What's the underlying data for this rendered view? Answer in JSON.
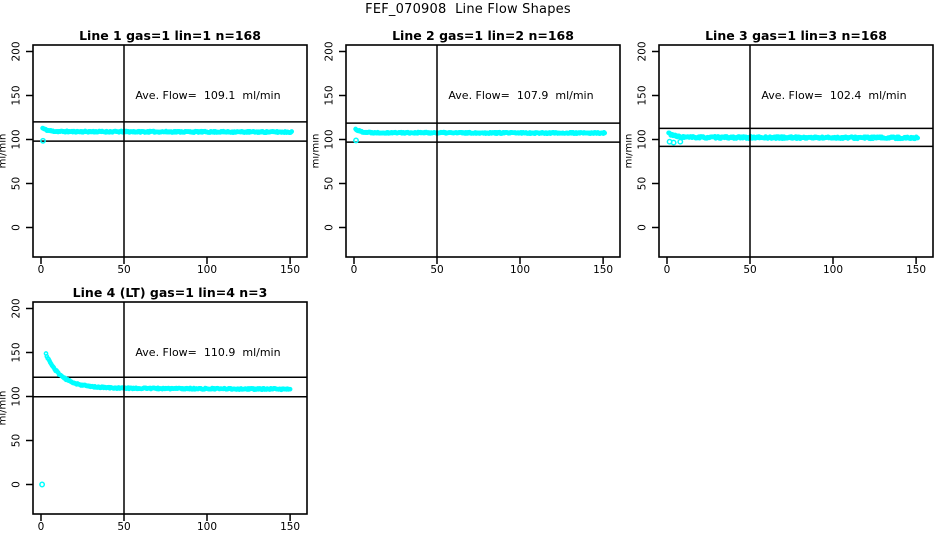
{
  "main": {
    "title": "FEF_070908  Line Flow Shapes"
  },
  "colors": {
    "points": "#00ffff",
    "axis": "#000000",
    "background": "#ffffff"
  },
  "axes": {
    "xlim": [
      -4.8,
      160.2
    ],
    "ylim": [
      -33.5,
      207.4
    ],
    "xticks": [
      0,
      50,
      100,
      150
    ],
    "yticks": [
      0,
      50,
      100,
      150,
      200
    ],
    "ylab": "ml/min",
    "vline_x": 50,
    "grid": false
  },
  "chart_data": [
    {
      "type": "scatter",
      "title": "Line 1 gas=1 lin=1 n=168",
      "annotation": "Ave. Flow=  109.1  ml/min",
      "ave_flow_ml_min": 109.1,
      "n": 168,
      "hlines": [
        120.0,
        98.2
      ],
      "profile": {
        "x_start": 1,
        "x_end": 151,
        "n_points": 340,
        "base": 109.0,
        "amp": 4.0,
        "tau": 3.0,
        "noise": 0.8,
        "droop": 0.5
      },
      "extra_points": [
        [
          1.2,
          98.5
        ]
      ]
    },
    {
      "type": "scatter",
      "title": "Line 2 gas=1 lin=2 n=168",
      "annotation": "Ave. Flow=  107.9  ml/min",
      "ave_flow_ml_min": 107.9,
      "n": 168,
      "hlines": [
        118.7,
        97.1
      ],
      "profile": {
        "x_start": 1,
        "x_end": 151,
        "n_points": 340,
        "base": 107.8,
        "amp": 4.0,
        "tau": 3.0,
        "noise": 0.8,
        "droop": 0.5
      },
      "extra_points": [
        [
          1.2,
          99.0
        ]
      ]
    },
    {
      "type": "scatter",
      "title": "Line 3 gas=1 lin=3 n=168",
      "annotation": "Ave. Flow=  102.4  ml/min",
      "ave_flow_ml_min": 102.4,
      "n": 168,
      "hlines": [
        112.6,
        92.2
      ],
      "profile": {
        "x_start": 1,
        "x_end": 151,
        "n_points": 340,
        "base": 102.4,
        "amp": 5.0,
        "tau": 3.5,
        "noise": 1.2,
        "droop": 0.5
      },
      "extra_points": [
        [
          1.6,
          97.5
        ],
        [
          4,
          96.5
        ],
        [
          8,
          97.5
        ]
      ]
    },
    {
      "type": "scatter",
      "title": "Line 4 (LT) gas=1 lin=4 n=3",
      "annotation": "Ave. Flow=  110.9  ml/min",
      "ave_flow_ml_min": 110.9,
      "n": 3,
      "hlines": [
        122.0,
        99.8
      ],
      "profile": {
        "x_start": 3,
        "x_end": 150,
        "n_points": 280,
        "base": 109.8,
        "amp": 38.5,
        "tau": 9.0,
        "noise": 0.8,
        "droop": 1.5
      },
      "extra_points": [
        [
          0.7,
          0
        ]
      ]
    }
  ]
}
